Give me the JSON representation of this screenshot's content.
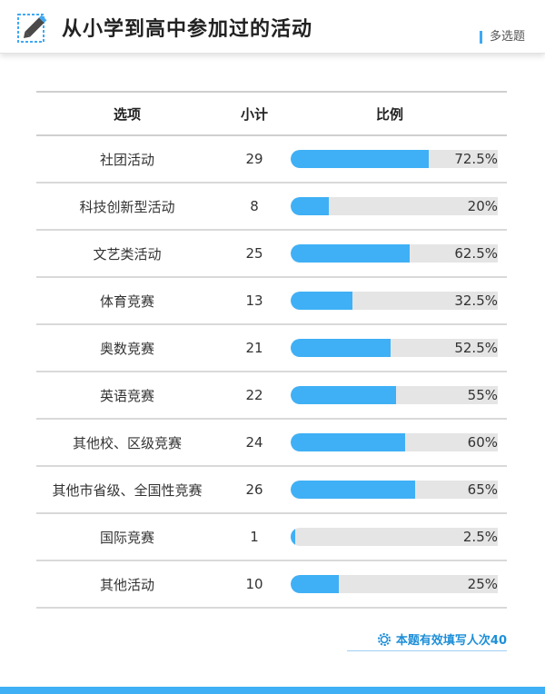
{
  "header": {
    "title": "从小学到高中参加过的活动",
    "question_type": "多选题",
    "icon": "pencil-edit-icon"
  },
  "table": {
    "columns": [
      "选项",
      "小计",
      "比例"
    ]
  },
  "footer": {
    "valid_count_text": "本题有效填写人次40",
    "icon": "gear-icon"
  },
  "colors": {
    "accent": "#3fb0f5",
    "track": "#e5e5e5",
    "note": "#1e8fd8"
  },
  "chart_data": {
    "type": "bar",
    "title": "从小学到高中参加过的活动",
    "categories": [
      "社团活动",
      "科技创新型活动",
      "文艺类活动",
      "体育竞赛",
      "奥数竞赛",
      "英语竞赛",
      "其他校、区级竞赛",
      "其他市省级、全国性竞赛",
      "国际竞赛",
      "其他活动"
    ],
    "counts": [
      29,
      8,
      25,
      13,
      21,
      22,
      24,
      26,
      1,
      10
    ],
    "percent_labels": [
      "72.5%",
      "20%",
      "62.5%",
      "32.5%",
      "52.5%",
      "55%",
      "60%",
      "65%",
      "2.5%",
      "25%"
    ],
    "values": [
      72.5,
      20,
      62.5,
      32.5,
      52.5,
      55,
      60,
      65,
      2.5,
      25
    ],
    "ylim": [
      0,
      100
    ]
  }
}
